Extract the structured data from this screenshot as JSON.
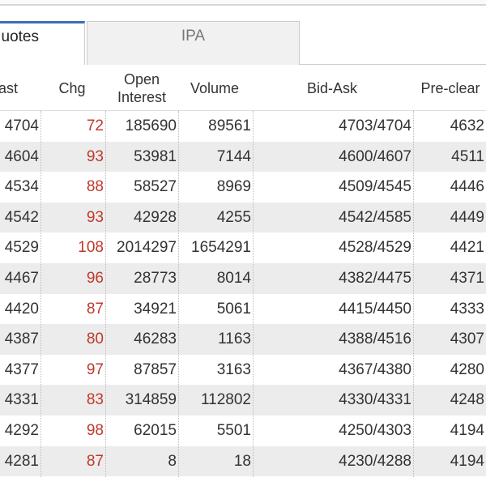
{
  "tabs": [
    "uotes",
    "IPA"
  ],
  "table": {
    "header": [
      "ast",
      "Chg",
      "Open Interest",
      "Volume",
      "Bid-Ask",
      "Pre-clear"
    ],
    "rows": [
      [
        4704,
        72,
        185690,
        89561,
        "4703/4704",
        4632
      ],
      [
        4604,
        93,
        53981,
        7144,
        "4600/4607",
        4511
      ],
      [
        4534,
        88,
        58527,
        8969,
        "4509/4545",
        4446
      ],
      [
        4542,
        93,
        42928,
        4255,
        "4542/4585",
        4449
      ],
      [
        4529,
        108,
        2014297,
        1654291,
        "4528/4529",
        4421
      ],
      [
        4467,
        96,
        28773,
        8014,
        "4382/4475",
        4371
      ],
      [
        4420,
        87,
        34921,
        5061,
        "4415/4450",
        4333
      ],
      [
        4387,
        80,
        46283,
        1163,
        "4388/4516",
        4307
      ],
      [
        4377,
        97,
        87857,
        3163,
        "4367/4380",
        4280
      ],
      [
        4331,
        83,
        314859,
        112802,
        "4330/4331",
        4248
      ],
      [
        4292,
        98,
        62015,
        5501,
        "4250/4303",
        4194
      ],
      [
        4281,
        87,
        8,
        18,
        "4230/4288",
        4194
      ]
    ]
  }
}
